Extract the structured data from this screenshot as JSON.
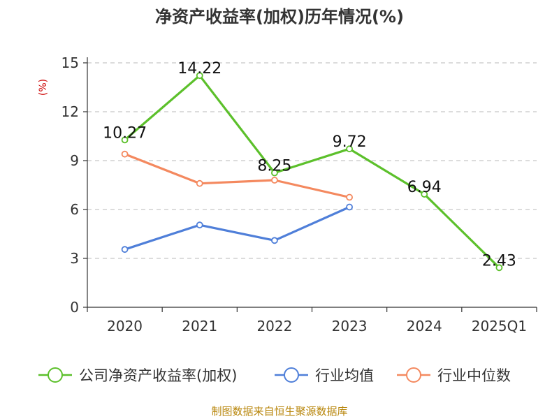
{
  "chart_data": {
    "type": "line",
    "title": "净资产收益率(加权)历年情况(%)",
    "ylabel": "(%)",
    "categories": [
      "2020",
      "2021",
      "2022",
      "2023",
      "2024",
      "2025Q1"
    ],
    "ylim": [
      0,
      15
    ],
    "yticks": [
      "0",
      "3",
      "6",
      "9",
      "12",
      "15"
    ],
    "grid": true,
    "legend_position": "bottom",
    "series": [
      {
        "name": "公司净资产收益率(加权)",
        "color": "#5cc02b",
        "values": [
          10.27,
          14.22,
          8.25,
          9.72,
          6.94,
          2.43
        ],
        "labels": [
          "10.27",
          "14.22",
          "8.25",
          "9.72",
          "6.94",
          "2.43"
        ]
      },
      {
        "name": "行业均值",
        "color": "#4f7fd9",
        "values": [
          3.55,
          5.05,
          4.1,
          6.15,
          null,
          null
        ]
      },
      {
        "name": "行业中位数",
        "color": "#f4895f",
        "values": [
          9.4,
          7.6,
          7.8,
          6.75,
          null,
          null
        ]
      }
    ]
  },
  "source": "制图数据来自恒生聚源数据库"
}
